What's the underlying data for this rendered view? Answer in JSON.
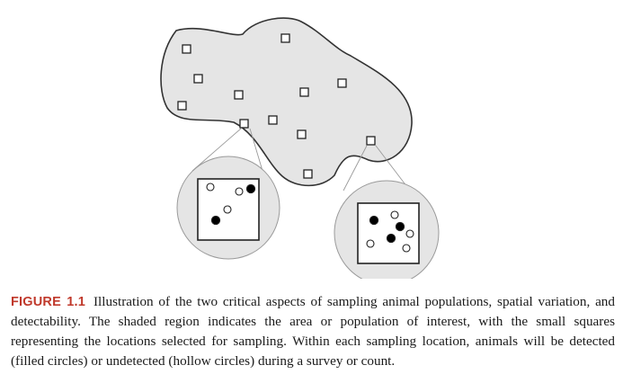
{
  "caption": {
    "label": "FIGURE 1.1",
    "text": "Illustration of the two critical aspects of sampling animal populations, spatial variation, and detectability. The shaded region indicates the area or population of interest, with the small squares representing the locations selected for sampling. Within each sampling location, animals will be detected (filled circles) or undetected (hollow circles) during a survey or count."
  },
  "colors": {
    "region_fill": "#e5e5e5",
    "outline": "#333333",
    "zoom_line": "#9a9a9a",
    "caption_label": "#c0392b"
  }
}
